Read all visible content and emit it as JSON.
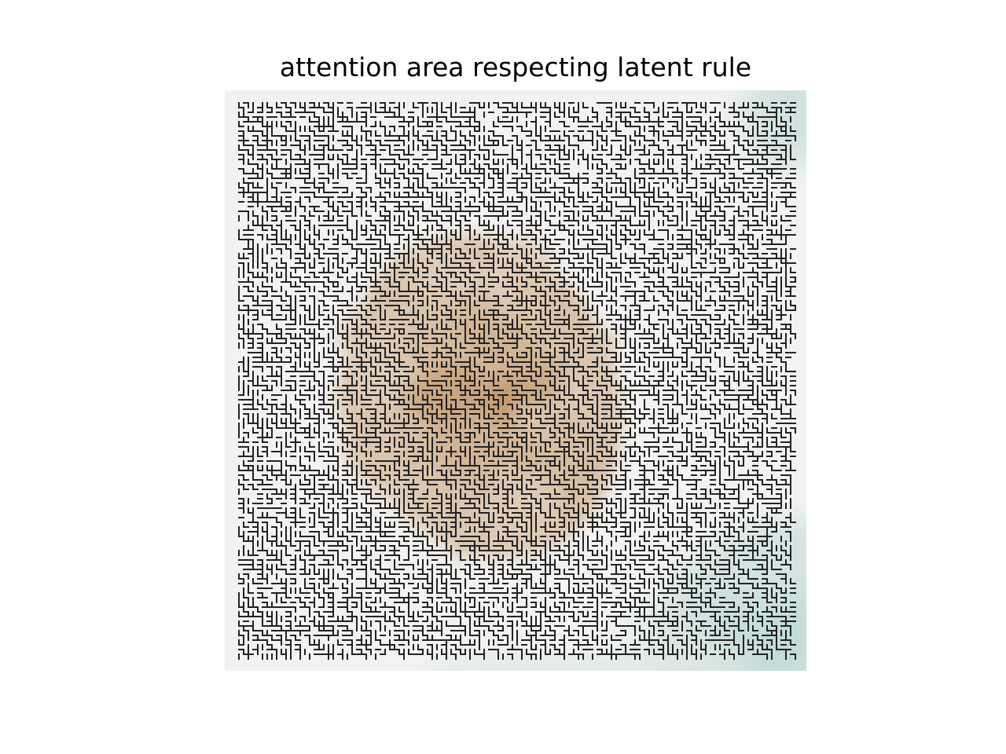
{
  "chart_data": {
    "type": "heatmap",
    "title": "attention area respecting latent rule",
    "xlabel": "",
    "ylabel": "",
    "grid": false,
    "legend": "none",
    "axes_visible": false,
    "colormap": {
      "name": "diverging brown-white-teal",
      "negative": "#a6651a",
      "neutral": "#f2f2f2",
      "positive": "#3fa08f"
    },
    "overlay": {
      "description": "black maze-like contour lines",
      "color": "#222222"
    },
    "regions": [
      {
        "label": "central attention blob",
        "sign": "negative",
        "peak_intensity": 0.8
      },
      {
        "label": "bottom-right corner",
        "sign": "positive",
        "peak_intensity": 0.45
      },
      {
        "label": "top-right corner",
        "sign": "positive",
        "peak_intensity": 0.35
      },
      {
        "label": "bottom edge",
        "sign": "positive",
        "peak_intensity": 0.25
      }
    ]
  }
}
